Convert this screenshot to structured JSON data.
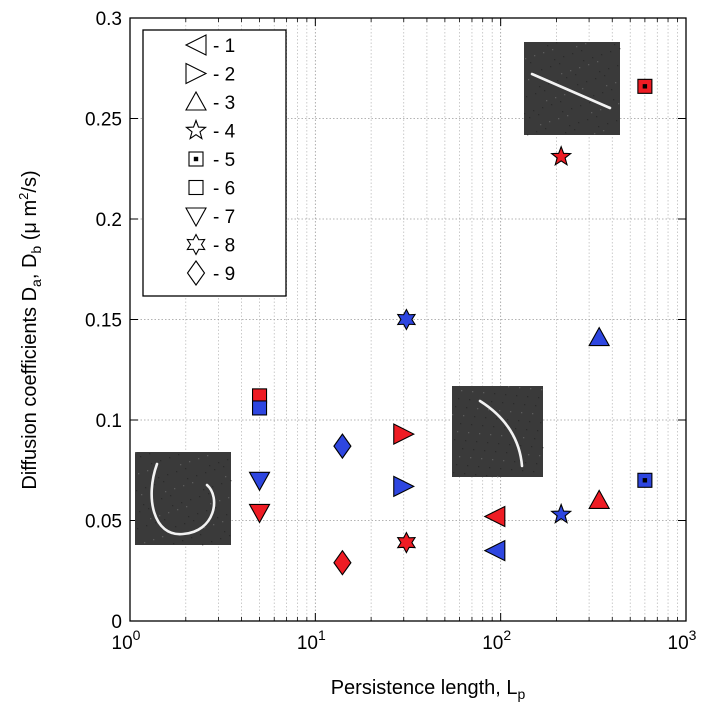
{
  "chart_data": {
    "type": "scatter",
    "xscale": "log",
    "xlim": [
      1,
      1000
    ],
    "ylim": [
      0,
      0.3
    ],
    "grid": true,
    "legend_position": "top-left",
    "xlabel": "Persistence length, L",
    "xlabel_sub": "p",
    "ylabel": "Diffusion coefficients D",
    "ylabel_sub1": "a",
    "ylabel_mid": ", D",
    "ylabel_sub2": "b",
    "ylabel_units": " (μ m",
    "ylabel_sup": "2",
    "ylabel_end": "/s)",
    "x_ticks": [
      {
        "base": "10",
        "exp": "0",
        "value": 1
      },
      {
        "base": "10",
        "exp": "1",
        "value": 10
      },
      {
        "base": "10",
        "exp": "2",
        "value": 100
      },
      {
        "base": "10",
        "exp": "3",
        "value": 1000
      }
    ],
    "y_ticks": [
      {
        "label": "0",
        "value": 0
      },
      {
        "label": "0.05",
        "value": 0.05
      },
      {
        "label": "0.1",
        "value": 0.1
      },
      {
        "label": "0.15",
        "value": 0.15
      },
      {
        "label": "0.2",
        "value": 0.2
      },
      {
        "label": "0.25",
        "value": 0.25
      },
      {
        "label": "0.3",
        "value": 0.3
      }
    ],
    "colors": {
      "Da": "#ee1c24",
      "Db": "#2e46e0"
    },
    "legend": [
      {
        "marker": "triangle-left",
        "label": "- 1"
      },
      {
        "marker": "triangle-right",
        "label": "- 2"
      },
      {
        "marker": "triangle-up",
        "label": "- 3"
      },
      {
        "marker": "star5",
        "label": "- 4"
      },
      {
        "marker": "square-dot",
        "label": "- 5"
      },
      {
        "marker": "square",
        "label": "- 6"
      },
      {
        "marker": "triangle-down",
        "label": "- 7"
      },
      {
        "marker": "star6",
        "label": "- 8"
      },
      {
        "marker": "diamond",
        "label": "- 9"
      }
    ],
    "points": [
      {
        "set": "1",
        "marker": "triangle-left",
        "x": 93,
        "da": 0.052,
        "db": 0.035
      },
      {
        "set": "2",
        "marker": "triangle-right",
        "x": 30,
        "da": 0.093,
        "db": 0.067
      },
      {
        "set": "3",
        "marker": "triangle-up",
        "x": 340,
        "da": 0.06,
        "db": 0.141
      },
      {
        "set": "4",
        "marker": "star5",
        "x": 212,
        "da": 0.231,
        "db": 0.053
      },
      {
        "set": "5",
        "marker": "square-dot",
        "x": 600,
        "da": 0.266,
        "db": 0.07
      },
      {
        "set": "6",
        "marker": "square",
        "x": 5,
        "da": 0.112,
        "db": 0.106
      },
      {
        "set": "7",
        "marker": "triangle-down",
        "x": 5,
        "da": 0.054,
        "db": 0.07
      },
      {
        "set": "8",
        "marker": "star6",
        "x": 31,
        "da": 0.039,
        "db": 0.15
      },
      {
        "set": "9",
        "marker": "diamond",
        "x": 14,
        "da": 0.029,
        "db": 0.087
      }
    ],
    "insets": [
      {
        "name": "inset-u-shaped-filament",
        "shape": "u"
      },
      {
        "name": "inset-curved-filament",
        "shape": "arc"
      },
      {
        "name": "inset-straight-filament",
        "shape": "line"
      }
    ]
  }
}
